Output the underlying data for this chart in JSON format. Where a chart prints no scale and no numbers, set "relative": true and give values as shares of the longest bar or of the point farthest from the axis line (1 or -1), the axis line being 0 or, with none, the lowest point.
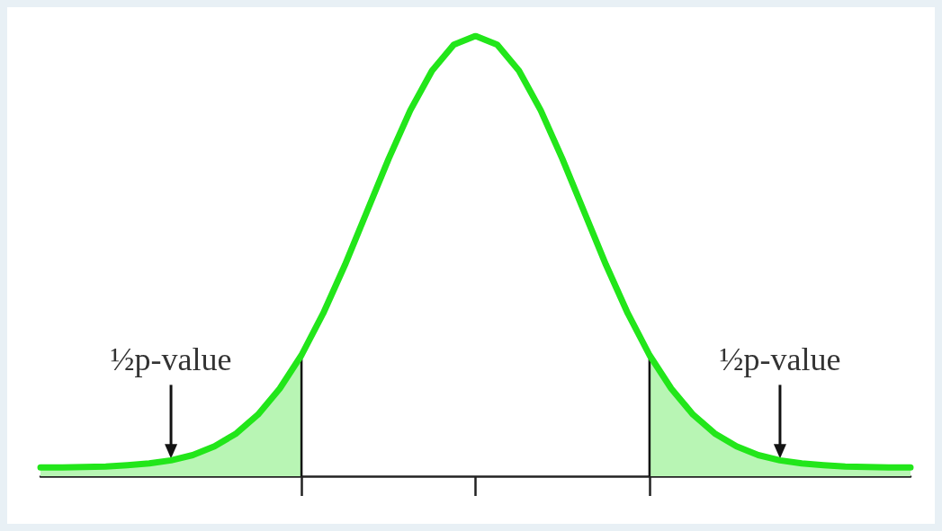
{
  "chart_data": {
    "type": "line",
    "relative": true,
    "marker": "none",
    "color": "#22e61a",
    "categories": [
      null,
      null,
      null,
      null,
      null,
      null,
      null,
      null,
      null,
      null,
      null,
      null,
      null,
      null,
      null,
      null,
      null,
      null,
      null,
      null,
      null,
      null,
      null,
      null,
      null,
      null,
      null,
      null,
      null,
      null,
      null,
      null,
      null,
      null,
      null,
      null,
      null,
      null,
      null,
      null,
      null
    ],
    "values": [
      0.02,
      0.02,
      0.021,
      0.022,
      0.025,
      0.029,
      0.036,
      0.048,
      0.068,
      0.097,
      0.14,
      0.199,
      0.275,
      0.37,
      0.48,
      0.6,
      0.72,
      0.831,
      0.921,
      0.98,
      1,
      0.98,
      0.921,
      0.831,
      0.72,
      0.6,
      0.48,
      0.37,
      0.275,
      0.199,
      0.14,
      0.097,
      0.068,
      0.048,
      0.036,
      0.029,
      0.025,
      0.022,
      0.021,
      0.02,
      0.02
    ],
    "annotations": [
      "½p-value",
      "½p-value"
    ]
  }
}
